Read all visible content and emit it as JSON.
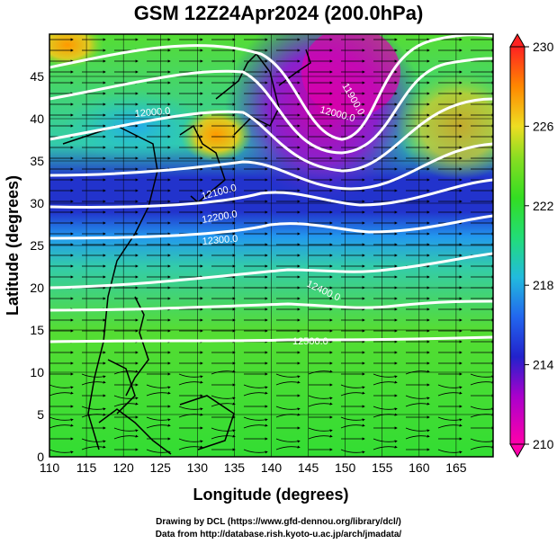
{
  "title": "GSM 12Z24Apr2024 (200.0hPa)",
  "credits": {
    "line1": "Drawing by DCL (https://www.gfd-dennou.org/library/dcl/)",
    "line2": "Data from http://database.rish.kyoto-u.ac.jp/arch/jmadata/"
  },
  "axes": {
    "xlabel": "Longitude (degrees)",
    "ylabel": "Latitude  (degrees)",
    "xlim": [
      110,
      170
    ],
    "ylim": [
      0,
      50
    ],
    "xticks": [
      "110",
      "115",
      "120",
      "125",
      "130",
      "135",
      "140",
      "145",
      "150",
      "155",
      "160",
      "165"
    ],
    "yticks": [
      "0",
      "5",
      "10",
      "15",
      "20",
      "25",
      "30",
      "35",
      "40",
      "45"
    ]
  },
  "colorbar": {
    "min": 210,
    "max": 230,
    "labels": [
      "230",
      "226",
      "222",
      "218",
      "214",
      "210"
    ],
    "colors": [
      "#ff0099",
      "#aa00cc",
      "#2222cc",
      "#2277ee",
      "#22bbdd",
      "#22dd55",
      "#66dd22",
      "#eedd22",
      "#ff8800",
      "#ff2222"
    ]
  },
  "contour_labels": [
    "11900.0",
    "12000.0",
    "12000.0",
    "12100.0",
    "12200.0",
    "12300.0",
    "12400.0",
    "12500.0"
  ]
}
